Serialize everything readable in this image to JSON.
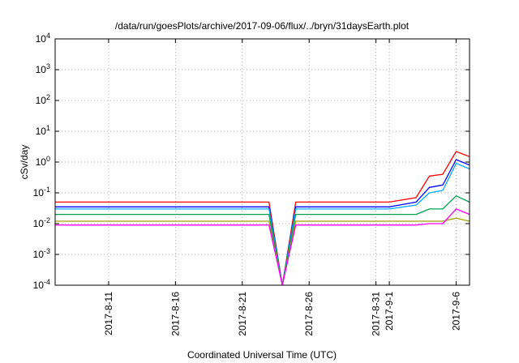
{
  "chart_data": {
    "type": "line",
    "title": "/data/run/goesPlots/archive/2017-09-06/flux/../bryn/31daysEarth.plot",
    "xlabel": "Coordinated Universal Time (UTC)",
    "ylabel": "cSv/day",
    "yscale": "log",
    "ylim": [
      0.0001,
      10000
    ],
    "yticks": [
      {
        "value": 10000,
        "base": "10",
        "exp": "4"
      },
      {
        "value": 1000,
        "base": "10",
        "exp": "3"
      },
      {
        "value": 100,
        "base": "10",
        "exp": "2"
      },
      {
        "value": 10,
        "base": "10",
        "exp": "1"
      },
      {
        "value": 1,
        "base": "10",
        "exp": "0"
      },
      {
        "value": 0.1,
        "base": "10",
        "exp": "-1"
      },
      {
        "value": 0.01,
        "base": "10",
        "exp": "-2"
      },
      {
        "value": 0.001,
        "base": "10",
        "exp": "-3"
      },
      {
        "value": 0.0001,
        "base": "10",
        "exp": "-4"
      }
    ],
    "xlim": [
      "2017-08-07",
      "2017-09-07"
    ],
    "xticks": [
      {
        "date": "2017-08-11",
        "label": "2017-8-11"
      },
      {
        "date": "2017-08-16",
        "label": "2017-8-16"
      },
      {
        "date": "2017-08-21",
        "label": "2017-8-21"
      },
      {
        "date": "2017-08-26",
        "label": "2017-8-26"
      },
      {
        "date": "2017-08-31",
        "label": "2017-8-31"
      },
      {
        "date": "2017-09-01",
        "label": "2017-9-1"
      },
      {
        "date": "2017-09-06",
        "label": "2017-9-6"
      }
    ],
    "grid": true,
    "legend": "none",
    "series": [
      {
        "color": "#ff0000",
        "x": [
          "2017-08-07",
          "2017-08-10",
          "2017-08-14",
          "2017-08-18",
          "2017-08-22",
          "2017-08-23",
          "2017-08-24",
          "2017-08-25",
          "2017-08-28",
          "2017-09-01",
          "2017-09-03",
          "2017-09-04",
          "2017-09-05",
          "2017-09-06",
          "2017-09-07"
        ],
        "values": [
          0.05,
          0.05,
          0.05,
          0.05,
          0.05,
          0.05,
          0.0001,
          0.05,
          0.05,
          0.05,
          0.07,
          0.35,
          0.4,
          2.2,
          1.5
        ]
      },
      {
        "color": "#0000ff",
        "x": [
          "2017-08-07",
          "2017-08-10",
          "2017-08-14",
          "2017-08-18",
          "2017-08-22",
          "2017-08-23",
          "2017-08-24",
          "2017-08-25",
          "2017-08-28",
          "2017-09-01",
          "2017-09-03",
          "2017-09-04",
          "2017-09-05",
          "2017-09-06",
          "2017-09-07"
        ],
        "values": [
          0.035,
          0.035,
          0.035,
          0.035,
          0.035,
          0.035,
          0.0001,
          0.035,
          0.035,
          0.035,
          0.05,
          0.15,
          0.18,
          1.2,
          0.8
        ]
      },
      {
        "color": "#00aaff",
        "x": [
          "2017-08-07",
          "2017-08-10",
          "2017-08-14",
          "2017-08-18",
          "2017-08-22",
          "2017-08-23",
          "2017-08-24",
          "2017-08-25",
          "2017-08-28",
          "2017-09-01",
          "2017-09-03",
          "2017-09-04",
          "2017-09-05",
          "2017-09-06",
          "2017-09-07"
        ],
        "values": [
          0.03,
          0.03,
          0.03,
          0.03,
          0.03,
          0.03,
          0.0001,
          0.03,
          0.03,
          0.03,
          0.04,
          0.1,
          0.12,
          0.9,
          0.6
        ]
      },
      {
        "color": "#00a050",
        "x": [
          "2017-08-07",
          "2017-08-10",
          "2017-08-14",
          "2017-08-18",
          "2017-08-22",
          "2017-08-23",
          "2017-08-24",
          "2017-08-25",
          "2017-08-28",
          "2017-09-01",
          "2017-09-03",
          "2017-09-04",
          "2017-09-05",
          "2017-09-06",
          "2017-09-07"
        ],
        "values": [
          0.02,
          0.02,
          0.02,
          0.02,
          0.02,
          0.02,
          0.0001,
          0.02,
          0.02,
          0.02,
          0.02,
          0.03,
          0.03,
          0.08,
          0.05
        ]
      },
      {
        "color": "#a0a000",
        "x": [
          "2017-08-07",
          "2017-08-10",
          "2017-08-14",
          "2017-08-18",
          "2017-08-22",
          "2017-08-23",
          "2017-08-24",
          "2017-08-25",
          "2017-08-28",
          "2017-09-01",
          "2017-09-03",
          "2017-09-04",
          "2017-09-05",
          "2017-09-06",
          "2017-09-07"
        ],
        "values": [
          0.012,
          0.012,
          0.012,
          0.012,
          0.012,
          0.012,
          0.0001,
          0.012,
          0.012,
          0.012,
          0.012,
          0.012,
          0.012,
          0.015,
          0.012
        ]
      },
      {
        "color": "#ff00ff",
        "x": [
          "2017-08-07",
          "2017-08-10",
          "2017-08-14",
          "2017-08-18",
          "2017-08-22",
          "2017-08-23",
          "2017-08-24",
          "2017-08-25",
          "2017-08-28",
          "2017-09-01",
          "2017-09-03",
          "2017-09-04",
          "2017-09-05",
          "2017-09-06",
          "2017-09-07"
        ],
        "values": [
          0.009,
          0.009,
          0.009,
          0.009,
          0.009,
          0.009,
          0.0001,
          0.009,
          0.009,
          0.009,
          0.009,
          0.01,
          0.01,
          0.03,
          0.02
        ]
      }
    ]
  }
}
